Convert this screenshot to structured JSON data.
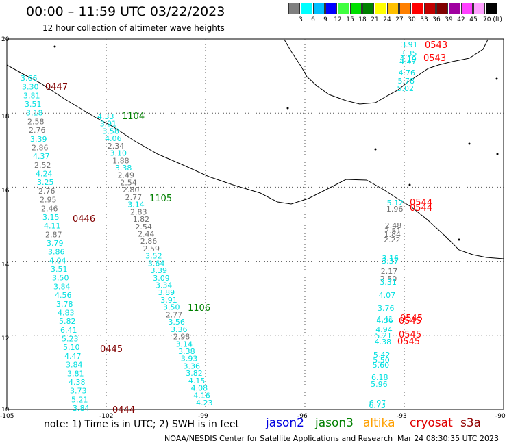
{
  "header": {
    "title": "00:00 – 11:59 UTC 03/22/2023",
    "subtitle": "12 hour collection of altimeter wave heights"
  },
  "scale": {
    "labels": [
      "3",
      "6",
      "9",
      "12",
      "15",
      "18",
      "21",
      "24",
      "27",
      "30",
      "33",
      "36",
      "39",
      "42",
      "45",
      "70 (ft)"
    ],
    "colors": [
      "#808080",
      "#00ffff",
      "#00c0ff",
      "#0000ff",
      "#40ff40",
      "#00e000",
      "#008000",
      "#ffff00",
      "#ffc000",
      "#ff8000",
      "#ff0000",
      "#c00000",
      "#800000",
      "#a000a0",
      "#ff40ff",
      "#ffa0ff",
      "#000000"
    ]
  },
  "axes": {
    "lat_labels": [
      "20",
      "18",
      "16",
      "14",
      "12",
      "10"
    ],
    "lon_labels": [
      "-105",
      "-102",
      "-99",
      "-96",
      "-93",
      "-90"
    ]
  },
  "times": [
    {
      "text": "0447",
      "color": "#800000"
    },
    {
      "text": "0446",
      "color": "#800000"
    },
    {
      "text": "0445",
      "color": "#800000"
    },
    {
      "text": "0444",
      "color": "#800000"
    },
    {
      "text": "1104",
      "color": "#008000"
    },
    {
      "text": "1105",
      "color": "#008000"
    },
    {
      "text": "1106",
      "color": "#008000"
    },
    {
      "text": "0543",
      "color": "#ff0000"
    },
    {
      "text": "0543",
      "color": "#ff0000"
    },
    {
      "text": "0544",
      "color": "#ff0000"
    },
    {
      "text": "0544",
      "color": "#ff0000"
    },
    {
      "text": "0545",
      "color": "#ff0000"
    },
    {
      "text": "0545",
      "color": "#ff0000"
    },
    {
      "text": "0545",
      "color": "#ff0000"
    },
    {
      "text": "0545",
      "color": "#ff0000"
    }
  ],
  "track_a": [
    {
      "v": "3.66",
      "c": "#00e0e0"
    },
    {
      "v": "3.30",
      "c": "#00e0e0"
    },
    {
      "v": "3.81",
      "c": "#00e0e0"
    },
    {
      "v": "3.51",
      "c": "#00e0e0"
    },
    {
      "v": "3.18",
      "c": "#00e0e0"
    },
    {
      "v": "2.58",
      "c": "#707070"
    },
    {
      "v": "2.76",
      "c": "#707070"
    },
    {
      "v": "3.39",
      "c": "#00e0e0"
    },
    {
      "v": "2.86",
      "c": "#707070"
    },
    {
      "v": "4.37",
      "c": "#00e0e0"
    },
    {
      "v": "2.52",
      "c": "#707070"
    },
    {
      "v": "4.24",
      "c": "#00e0e0"
    },
    {
      "v": "3.25",
      "c": "#00e0e0"
    },
    {
      "v": "2.76",
      "c": "#707070"
    },
    {
      "v": "2.95",
      "c": "#707070"
    },
    {
      "v": "2.46",
      "c": "#707070"
    },
    {
      "v": "3.15",
      "c": "#00e0e0"
    },
    {
      "v": "4.11",
      "c": "#00e0e0"
    },
    {
      "v": "2.87",
      "c": "#707070"
    },
    {
      "v": "3.79",
      "c": "#00e0e0"
    },
    {
      "v": "3.86",
      "c": "#00e0e0"
    },
    {
      "v": "4.04",
      "c": "#00e0e0"
    },
    {
      "v": "3.51",
      "c": "#00e0e0"
    },
    {
      "v": "3.50",
      "c": "#00e0e0"
    },
    {
      "v": "3.84",
      "c": "#00e0e0"
    },
    {
      "v": "4.56",
      "c": "#00e0e0"
    },
    {
      "v": "3.78",
      "c": "#00e0e0"
    },
    {
      "v": "4.83",
      "c": "#00e0e0"
    },
    {
      "v": "5.82",
      "c": "#00e0e0"
    },
    {
      "v": "6.41",
      "c": "#00e0e0"
    },
    {
      "v": "5.23",
      "c": "#00e0e0"
    },
    {
      "v": "5.10",
      "c": "#00e0e0"
    },
    {
      "v": "4.47",
      "c": "#00e0e0"
    },
    {
      "v": "3.84",
      "c": "#00e0e0"
    },
    {
      "v": "3.81",
      "c": "#00e0e0"
    },
    {
      "v": "4.38",
      "c": "#00e0e0"
    },
    {
      "v": "3.73",
      "c": "#00e0e0"
    },
    {
      "v": "5.21",
      "c": "#00e0e0"
    },
    {
      "v": "3.84",
      "c": "#00e0e0"
    }
  ],
  "track_b": [
    {
      "v": "4.33",
      "c": "#00e0e0"
    },
    {
      "v": "3.91",
      "c": "#00e0e0"
    },
    {
      "v": "3.58",
      "c": "#00e0e0"
    },
    {
      "v": "4.06",
      "c": "#00e0e0"
    },
    {
      "v": "2.34",
      "c": "#707070"
    },
    {
      "v": "3.10",
      "c": "#00e0e0"
    },
    {
      "v": "1.88",
      "c": "#707070"
    },
    {
      "v": "3.38",
      "c": "#00e0e0"
    },
    {
      "v": "2.49",
      "c": "#707070"
    },
    {
      "v": "2.54",
      "c": "#707070"
    },
    {
      "v": "2.80",
      "c": "#707070"
    },
    {
      "v": "2.77",
      "c": "#707070"
    },
    {
      "v": "3.14",
      "c": "#00e0e0"
    },
    {
      "v": "2.83",
      "c": "#707070"
    },
    {
      "v": "1.82",
      "c": "#707070"
    },
    {
      "v": "2.54",
      "c": "#707070"
    },
    {
      "v": "2.44",
      "c": "#707070"
    },
    {
      "v": "2.86",
      "c": "#707070"
    },
    {
      "v": "2.59",
      "c": "#707070"
    },
    {
      "v": "3.52",
      "c": "#00e0e0"
    },
    {
      "v": "3.64",
      "c": "#00e0e0"
    },
    {
      "v": "3.39",
      "c": "#00e0e0"
    },
    {
      "v": "3.09",
      "c": "#00e0e0"
    },
    {
      "v": "3.34",
      "c": "#00e0e0"
    },
    {
      "v": "3.89",
      "c": "#00e0e0"
    },
    {
      "v": "3.91",
      "c": "#00e0e0"
    },
    {
      "v": "3.50",
      "c": "#00e0e0"
    },
    {
      "v": "2.77",
      "c": "#707070"
    },
    {
      "v": "3.56",
      "c": "#00e0e0"
    },
    {
      "v": "3.36",
      "c": "#00e0e0"
    },
    {
      "v": "2.98",
      "c": "#707070"
    },
    {
      "v": "3.14",
      "c": "#00e0e0"
    },
    {
      "v": "3.38",
      "c": "#00e0e0"
    },
    {
      "v": "3.93",
      "c": "#00e0e0"
    },
    {
      "v": "3.36",
      "c": "#00e0e0"
    },
    {
      "v": "3.82",
      "c": "#00e0e0"
    },
    {
      "v": "4.15",
      "c": "#00e0e0"
    },
    {
      "v": "4.08",
      "c": "#00e0e0"
    },
    {
      "v": "4.16",
      "c": "#00e0e0"
    },
    {
      "v": "4.23",
      "c": "#00e0e0"
    }
  ],
  "track_c": [
    {
      "v": "3.91",
      "c": "#00e0e0"
    },
    {
      "v": "3.35",
      "c": "#00e0e0"
    },
    {
      "v": "4.19",
      "c": "#00e0e0"
    },
    {
      "v": "4.47",
      "c": "#00e0e0"
    },
    {
      "v": "4.76",
      "c": "#00e0e0"
    },
    {
      "v": "5.78",
      "c": "#00e0e0"
    },
    {
      "v": "5.02",
      "c": "#00e0e0"
    },
    {
      "v": "5.12",
      "c": "#00e0e0"
    },
    {
      "v": "1.96",
      "c": "#707070"
    },
    {
      "v": "2.48",
      "c": "#707070"
    },
    {
      "v": "2.51",
      "c": "#707070"
    },
    {
      "v": "1.84",
      "c": "#707070"
    },
    {
      "v": "2.22",
      "c": "#707070"
    },
    {
      "v": "3.16",
      "c": "#00e0e0"
    },
    {
      "v": "3.37",
      "c": "#00e0e0"
    },
    {
      "v": "2.17",
      "c": "#707070"
    },
    {
      "v": "2.50",
      "c": "#707070"
    },
    {
      "v": "3.31",
      "c": "#00e0e0"
    },
    {
      "v": "4.07",
      "c": "#00e0e0"
    },
    {
      "v": "3.76",
      "c": "#00e0e0"
    },
    {
      "v": "4.41",
      "c": "#00e0e0"
    },
    {
      "v": "4.36",
      "c": "#00e0e0"
    },
    {
      "v": "4.94",
      "c": "#00e0e0"
    },
    {
      "v": "5.21",
      "c": "#00e0e0"
    },
    {
      "v": "4.38",
      "c": "#00e0e0"
    },
    {
      "v": "5.42",
      "c": "#00e0e0"
    },
    {
      "v": "5.50",
      "c": "#00e0e0"
    },
    {
      "v": "5.60",
      "c": "#00e0e0"
    },
    {
      "v": "6.18",
      "c": "#00e0e0"
    },
    {
      "v": "5.96",
      "c": "#00e0e0"
    },
    {
      "v": "6.97",
      "c": "#00e0e0"
    },
    {
      "v": "6.73",
      "c": "#00e0e0"
    }
  ],
  "footer": {
    "note": "note: 1) Time is in UTC; 2) SWH is in feet",
    "credit": "NOAA/NESDIS Center for Satellite Applications and Research",
    "stamp": "Mar 24 08:30:35 UTC 2023",
    "satellites": [
      {
        "name": "jason2",
        "color": "#0000e0"
      },
      {
        "name": "jason3",
        "color": "#008000"
      },
      {
        "name": "altika",
        "color": "#ffa000"
      },
      {
        "name": "cryosat",
        "color": "#e00000"
      },
      {
        "name": "s3a",
        "color": "#900000"
      }
    ]
  }
}
